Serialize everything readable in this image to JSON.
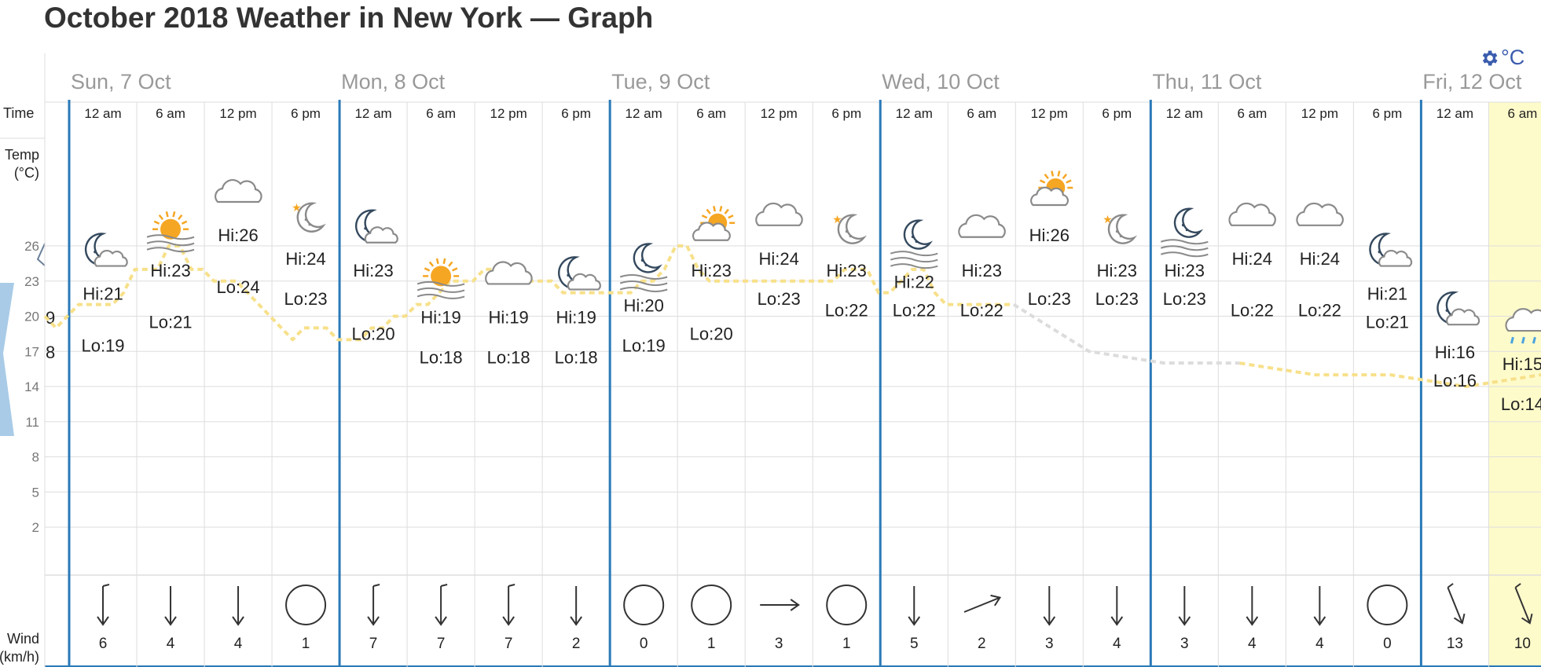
{
  "page": {
    "title": "October 2018 Weather in New York — Graph"
  },
  "settings": {
    "icon": "gear-icon",
    "unit_label": "°C"
  },
  "row_labels": {
    "time": "Time",
    "temp_line1": "Temp",
    "temp_line2": "(°C)",
    "wind_line1": "Wind",
    "wind_line2": "(km/h)"
  },
  "colors": {
    "day_divider": "#2a7ab8",
    "grid": "#dddddd",
    "temp_line": "#f7e08a",
    "forecast_line": "#dcdcdc",
    "highlight": "#fefbcb",
    "cloud": "#8a8a8a",
    "sun": "#f5a623",
    "moon": "#34495e",
    "rain": "#4aa3df",
    "left_band": "#a9cbe7"
  },
  "chart_data": {
    "type": "line",
    "title": "October 2018 Weather in New York — Graph",
    "ylabel": "Temp (°C)",
    "ylim": [
      0,
      29
    ],
    "yticks": [
      2,
      5,
      8,
      11,
      14,
      17,
      20,
      23,
      26
    ],
    "grid": true,
    "days": [
      "Sun, 7 Oct",
      "Mon, 8 Oct",
      "Tue, 9 Oct",
      "Wed, 10 Oct",
      "Thu, 11 Oct",
      "Fri, 12 Oct"
    ],
    "time_labels": [
      "12 am",
      "6 am",
      "12 pm",
      "6 pm",
      "12 am",
      "6 am",
      "12 pm",
      "6 pm",
      "12 am",
      "6 am",
      "12 pm",
      "6 pm",
      "12 am",
      "6 am",
      "12 pm",
      "6 pm",
      "12 am",
      "6 am",
      "12 pm",
      "6 pm",
      "12 am",
      "6 am"
    ],
    "weather_icons": [
      "moon-cloud",
      "sun-haze",
      "cloud",
      "moon",
      "moon-cloud",
      "sun-haze",
      "cloud",
      "moon-cloud",
      "moon-haze",
      "sun-cloud",
      "cloud",
      "moon",
      "moon-haze",
      "cloud",
      "sun-cloud",
      "moon",
      "moon-haze",
      "cloud",
      "cloud",
      "moon-cloud",
      "moon-cloud",
      "rain-cloud"
    ],
    "hi": [
      21,
      23,
      26,
      24,
      23,
      19,
      19,
      19,
      20,
      23,
      24,
      23,
      22,
      23,
      26,
      23,
      23,
      24,
      24,
      21,
      16,
      15
    ],
    "lo": [
      19,
      21,
      24,
      23,
      20,
      18,
      18,
      18,
      19,
      20,
      23,
      22,
      22,
      22,
      23,
      23,
      23,
      22,
      22,
      21,
      16,
      14
    ],
    "hi_labels": [
      "Hi:21",
      "Hi:23",
      "Hi:26",
      "Hi:24",
      "Hi:23",
      "Hi:19",
      "Hi:19",
      "Hi:19",
      "Hi:20",
      "Hi:23",
      "Hi:24",
      "Hi:23",
      "Hi:22",
      "Hi:23",
      "Hi:26",
      "Hi:23",
      "Hi:23",
      "Hi:24",
      "Hi:24",
      "Hi:21",
      "Hi:16",
      "Hi:15"
    ],
    "lo_labels": [
      "Lo:19",
      "Lo:21",
      "Lo:24",
      "Lo:23",
      "Lo:20",
      "Lo:18",
      "Lo:18",
      "Lo:18",
      "Lo:19",
      "Lo:20",
      "Lo:23",
      "Lo:22",
      "Lo:22",
      "Lo:22",
      "Lo:23",
      "Lo:23",
      "Lo:23",
      "Lo:22",
      "Lo:22",
      "Lo:21",
      "Lo:16",
      "Lo:14"
    ],
    "temp_line": [
      20,
      19,
      20,
      21,
      21,
      21,
      21,
      22,
      24,
      24,
      24,
      26,
      26,
      24,
      24,
      23,
      23,
      23,
      22,
      21,
      20,
      19,
      18,
      19,
      19,
      19,
      18,
      18,
      18,
      19,
      19,
      20,
      20,
      21,
      21,
      22,
      23,
      23,
      23,
      24,
      24,
      23,
      23,
      23,
      23,
      23,
      22,
      22,
      22,
      22,
      22,
      22,
      22,
      23,
      23,
      24,
      26,
      26,
      24,
      23,
      23,
      23,
      23,
      23,
      23,
      23,
      23,
      23,
      23,
      23,
      23,
      24,
      24,
      24,
      22,
      22,
      23,
      24,
      24,
      22,
      21,
      21,
      21,
      21,
      21,
      21,
      21
    ],
    "forecast_line": [
      21,
      17,
      16,
      16,
      15,
      15,
      14,
      15
    ],
    "wind_speeds": [
      6,
      4,
      4,
      1,
      7,
      7,
      7,
      2,
      0,
      1,
      3,
      1,
      5,
      2,
      3,
      4,
      3,
      4,
      4,
      0,
      13,
      10
    ],
    "wind_directions": [
      "S",
      "S",
      "S",
      "calm",
      "S",
      "S",
      "S",
      "S",
      "calm",
      "calm",
      "E",
      "calm",
      "S",
      "ENE",
      "S",
      "S",
      "S",
      "S",
      "S",
      "calm",
      "SSE",
      "SSE"
    ],
    "left_cut_labels": [
      "9",
      "8"
    ],
    "highlighted_column": 21
  }
}
